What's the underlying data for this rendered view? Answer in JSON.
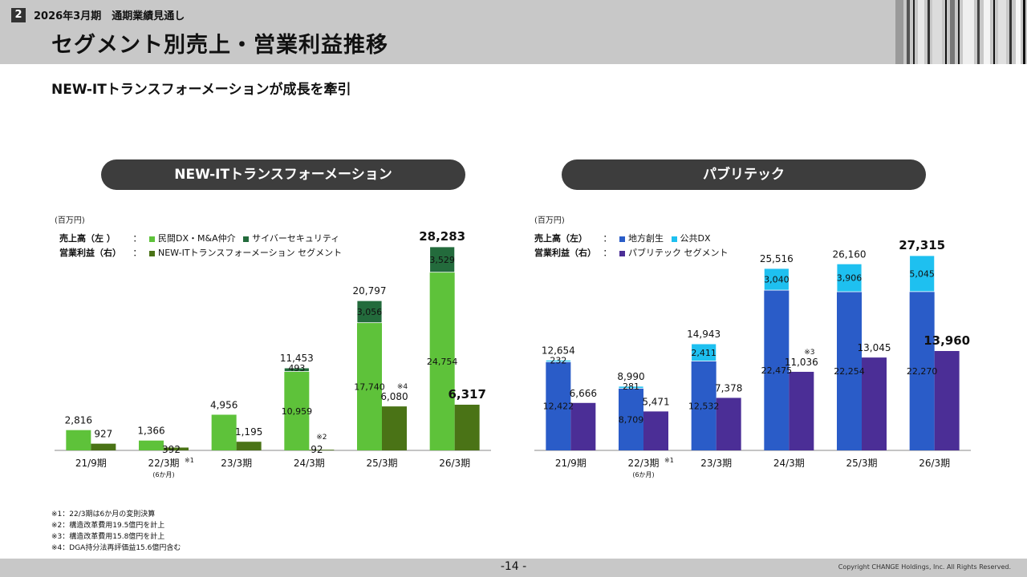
{
  "header": {
    "section_number": "2",
    "section_label": "2026年3月期　通期業績見通し",
    "title": "セグメント別売上・営業利益推移"
  },
  "subtitle": "NEW-ITトランスフォーメーションが成長を牽引",
  "left_panel": {
    "pill_label": "NEW-ITトランスフォーメーション",
    "unit": "(百万円)",
    "legend": {
      "sales_label": "売上高（左 ）",
      "profit_label": "営業利益（右）",
      "sep": "：",
      "sales_items": [
        {
          "name": "民間DX・M&A仲介",
          "color": "#5ec23a"
        },
        {
          "name": "サイバーセキュリティ",
          "color": "#236b3c"
        }
      ],
      "profit_items": [
        {
          "name": "NEW-ITトランスフォーメーション セグメント",
          "color": "#4a7316"
        }
      ]
    }
  },
  "right_panel": {
    "pill_label": "パブリテック",
    "unit": "(百万円)",
    "legend": {
      "sales_label": "売上高（左）",
      "profit_label": "営業利益（右）",
      "sep": "：",
      "sales_items": [
        {
          "name": "地方創生",
          "color": "#2a5cc8"
        },
        {
          "name": "公共DX",
          "color": "#1ec0f0"
        }
      ],
      "profit_items": [
        {
          "name": "パブリテック セグメント",
          "color": "#4b2e96"
        }
      ]
    }
  },
  "chart_data": [
    {
      "type": "bar",
      "categories": [
        "21/9期",
        "22/3期",
        "23/3期",
        "24/3期",
        "25/3期",
        "26/3期"
      ],
      "category_notes": [
        "",
        "※1",
        "",
        "",
        "",
        ""
      ],
      "category_sublabels": [
        "",
        "(6か月)",
        "",
        "",
        "",
        ""
      ],
      "series": [
        {
          "name": "民間DX・M&A仲介",
          "values": [
            2816,
            1366,
            4956,
            10959,
            17740,
            24754
          ],
          "color": "#5ec23a",
          "stack": "sales",
          "labels": [
            "",
            "",
            "",
            "10,959",
            "17,740",
            "24,754"
          ]
        },
        {
          "name": "サイバーセキュリティ",
          "values": [
            0,
            0,
            0,
            493,
            3056,
            3529
          ],
          "color": "#236b3c",
          "stack": "sales",
          "labels": [
            "",
            "",
            "",
            "493",
            "3,056",
            "3,529"
          ]
        },
        {
          "name": "NEW-ITトランスフォーメーション セグメント",
          "values": [
            927,
            392,
            1195,
            92,
            6080,
            6317
          ],
          "color": "#4a7316",
          "stack": "profit",
          "labels": [
            "927",
            "392",
            "1,195",
            "92",
            "6,080",
            "6,317"
          ]
        }
      ],
      "totals": [
        "2,816",
        "1,366",
        "4,956",
        "11,453",
        "20,797",
        "28,283"
      ],
      "profit_notes": [
        "",
        "",
        "",
        "※2",
        "※4",
        ""
      ],
      "ylim_sales": [
        0,
        28283
      ],
      "ylim_profit": [
        0,
        6317
      ]
    },
    {
      "type": "bar",
      "categories": [
        "21/9期",
        "22/3期",
        "23/3期",
        "24/3期",
        "25/3期",
        "26/3期"
      ],
      "category_notes": [
        "",
        "※1",
        "",
        "",
        "",
        ""
      ],
      "category_sublabels": [
        "",
        "(6か月)",
        "",
        "",
        "",
        ""
      ],
      "series": [
        {
          "name": "地方創生",
          "values": [
            12422,
            8709,
            12532,
            22475,
            22254,
            22270
          ],
          "color": "#2a5cc8",
          "stack": "sales",
          "labels": [
            "12,422",
            "8,709",
            "12,532",
            "22,475",
            "22,254",
            "22,270"
          ]
        },
        {
          "name": "公共DX",
          "values": [
            232,
            281,
            2411,
            3040,
            3906,
            5045
          ],
          "color": "#1ec0f0",
          "stack": "sales",
          "labels": [
            "232",
            "281",
            "2,411",
            "3,040",
            "3,906",
            "5,045"
          ]
        },
        {
          "name": "パブリテック セグメント",
          "values": [
            6666,
            5471,
            7378,
            11036,
            13045,
            13960
          ],
          "color": "#4b2e96",
          "stack": "profit",
          "labels": [
            "6,666",
            "5,471",
            "7,378",
            "11,036",
            "13,045",
            "13,960"
          ]
        }
      ],
      "totals": [
        "12,654",
        "8,990",
        "14,943",
        "25,516",
        "26,160",
        "27,315"
      ],
      "profit_notes": [
        "",
        "",
        "",
        "※3",
        "",
        ""
      ],
      "ylim_sales": [
        0,
        27315
      ],
      "ylim_profit": [
        0,
        13960
      ]
    }
  ],
  "footnotes": [
    "※1：22/3期は6か月の変則決算",
    "※2：構造改革費用19.5億円を計上",
    "※3：構造改革費用15.8億円を計上",
    "※4：DGA持分法再評価益15.6億円含む"
  ],
  "footer": {
    "page_number": "-14 -",
    "copyright": "Copyright CHANGE Holdings, Inc. All Rights Reserved."
  }
}
